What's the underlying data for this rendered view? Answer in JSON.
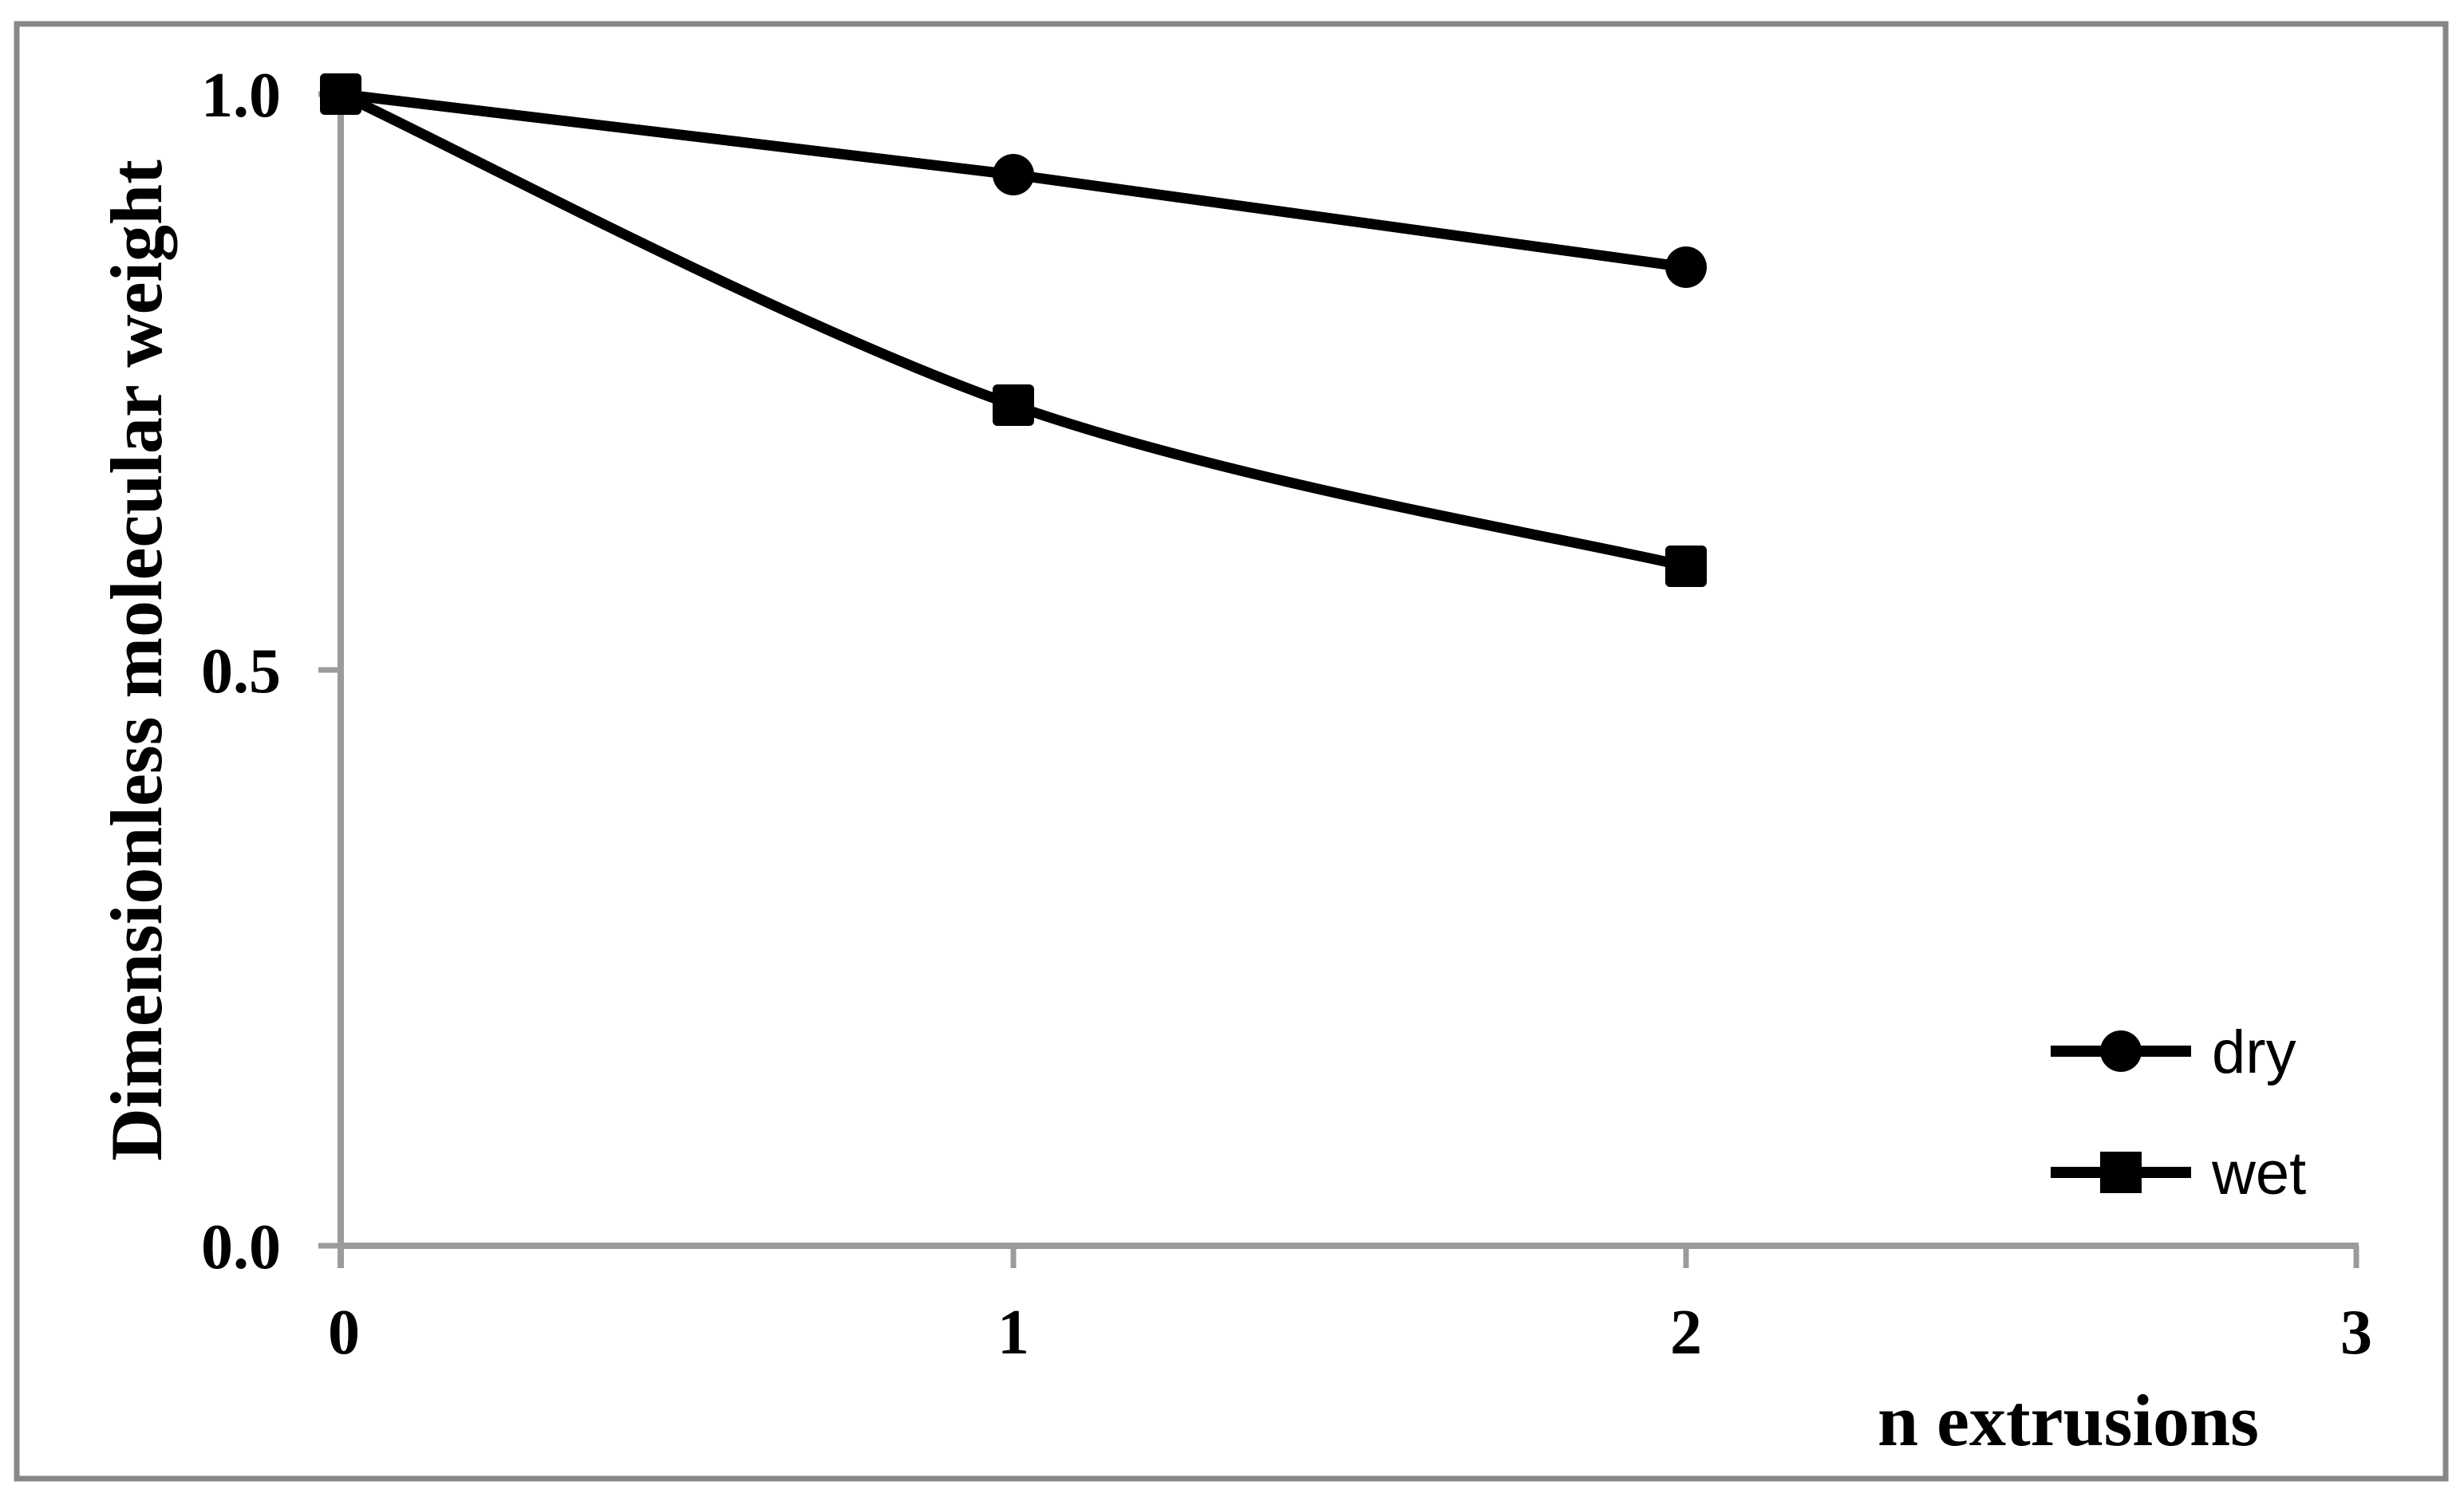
{
  "chart_data": {
    "type": "line",
    "title": "",
    "xlabel": "n extrusions",
    "ylabel": "Dimensionless molecular weight",
    "x": [
      0,
      1,
      2
    ],
    "x_ticks": [
      "0",
      "1",
      "2",
      "3"
    ],
    "y_ticks": [
      "0.0",
      "0.5",
      "1.0"
    ],
    "xlim": [
      0,
      3
    ],
    "ylim": [
      0.0,
      1.0
    ],
    "grid": false,
    "legend_position": "lower-right",
    "series": [
      {
        "name": "dry",
        "marker": "circle",
        "smooth": false,
        "values": [
          1.0,
          0.93,
          0.85
        ]
      },
      {
        "name": "wet",
        "marker": "square",
        "smooth": true,
        "values": [
          1.0,
          0.73,
          0.59
        ]
      }
    ],
    "colors": {
      "series_line": "#000000",
      "marker": "#000000",
      "axis": "#9b9b9b",
      "figure_border": "#878787",
      "text": "#000000",
      "background": "#ffffff"
    }
  }
}
